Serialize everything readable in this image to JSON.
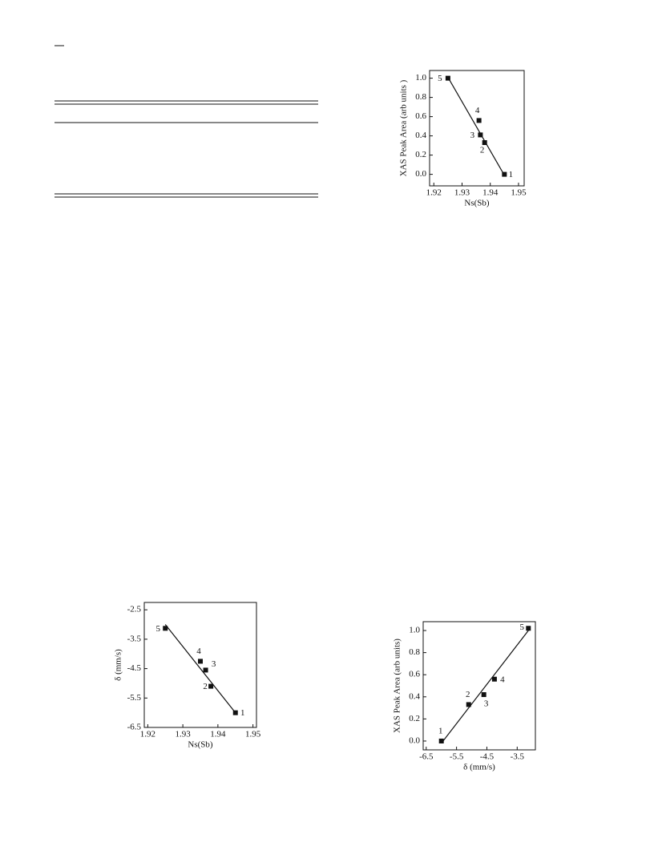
{
  "chart_data": [
    {
      "type": "scatter",
      "xlabel": "Ns(Sb)",
      "ylabel": "XAS Peak Area (arb units )",
      "color": "#111111",
      "xlim": [
        1.9185,
        1.952
      ],
      "ylim": [
        -0.12,
        1.08
      ],
      "xticks": [
        1.92,
        1.93,
        1.94,
        1.95
      ],
      "yticks": [
        {
          "value": 0,
          "label": "0.0"
        },
        0.2,
        0.4,
        0.6,
        0.8,
        {
          "value": 1,
          "label": "1.0"
        }
      ],
      "x": [
        1.945,
        1.938,
        1.9365,
        1.936,
        1.925
      ],
      "series": [
        {
          "name": "samples",
          "color": "#111111",
          "values": [
            0.0,
            0.33,
            0.41,
            0.56,
            1.0
          ]
        }
      ],
      "labels": [
        "1",
        "2",
        "3",
        "4",
        "5"
      ],
      "fit": {
        "x": [
          1.925,
          1.945
        ],
        "y": [
          1.01,
          -0.01
        ]
      }
    },
    {
      "type": "scatter",
      "xlabel": "Ns(Sb)",
      "ylabel": "δ (mm/s)",
      "color": "#111111",
      "xlim": [
        1.919,
        1.951
      ],
      "ylim": [
        -6.5,
        -2.25
      ],
      "xticks": [
        1.92,
        1.93,
        1.94,
        1.95
      ],
      "yticks": [
        -2.5,
        -3.5,
        -4.5,
        -5.5,
        -6.5
      ],
      "x": [
        1.945,
        1.938,
        1.9365,
        1.935,
        1.925
      ],
      "series": [
        {
          "name": "samples",
          "color": "#111111",
          "values": [
            -6.0,
            -5.1,
            -4.55,
            -4.25,
            -3.13
          ]
        }
      ],
      "labels": [
        "1",
        "2",
        "3",
        "4",
        "5"
      ],
      "fit": {
        "x": [
          1.925,
          1.945
        ],
        "y": [
          -3.0,
          -6.0
        ]
      }
    },
    {
      "type": "scatter",
      "xlabel": "δ (mm/s)",
      "ylabel": "XAS Peak Area (arb units)",
      "color": "#111111",
      "xlim": [
        -6.6,
        -2.9
      ],
      "ylim": [
        -0.08,
        1.08
      ],
      "xticks": [
        -6.5,
        -5.5,
        -4.5,
        -3.5
      ],
      "yticks": [
        {
          "value": 0,
          "label": "0.0"
        },
        0.2,
        0.4,
        0.6,
        0.8,
        {
          "value": 1,
          "label": "1.0"
        }
      ],
      "x": [
        -6.0,
        -5.1,
        -4.6,
        -4.25,
        -3.13
      ],
      "series": [
        {
          "name": "samples",
          "color": "#111111",
          "values": [
            0.0,
            0.33,
            0.42,
            0.56,
            1.02
          ]
        }
      ],
      "labels": [
        "1",
        "2",
        "3",
        "4",
        "5"
      ],
      "fit": {
        "x": [
          -6.0,
          -3.13
        ],
        "y": [
          -0.02,
          1.0
        ]
      }
    }
  ]
}
